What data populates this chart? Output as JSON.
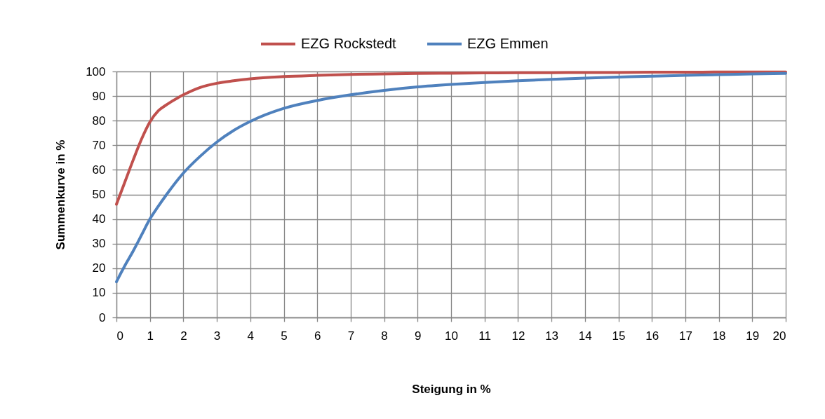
{
  "chart_data": {
    "type": "line",
    "xlabel": "Steigung in %",
    "ylabel": "Summenkurve in %",
    "x": [
      0,
      0.25,
      0.5,
      0.75,
      1,
      1.25,
      1.5,
      2,
      2.5,
      3,
      3.5,
      4,
      5,
      6,
      7,
      8,
      9,
      10,
      11,
      12,
      13,
      14,
      15,
      16,
      17,
      18,
      19,
      20
    ],
    "series": [
      {
        "name": "EZG Rockstedt",
        "color": "#c0504d",
        "values": [
          46,
          55,
          64,
          72.5,
          79.5,
          84,
          86.5,
          90.5,
          93.5,
          95.2,
          96.2,
          97,
          97.9,
          98.4,
          98.8,
          99,
          99.2,
          99.3,
          99.4,
          99.5,
          99.5,
          99.6,
          99.6,
          99.7,
          99.7,
          99.8,
          99.8,
          99.8
        ]
      },
      {
        "name": "EZG Emmen",
        "color": "#4f81bd",
        "values": [
          14.5,
          21,
          27,
          33.5,
          40,
          45.2,
          50,
          58.7,
          65.5,
          71.3,
          76,
          79.7,
          85,
          88.2,
          90.5,
          92.3,
          93.7,
          94.7,
          95.5,
          96.2,
          96.8,
          97.3,
          97.7,
          98.1,
          98.4,
          98.7,
          99,
          99.2
        ]
      }
    ],
    "xlim": [
      0,
      20
    ],
    "xticks": [
      0,
      1,
      2,
      3,
      4,
      5,
      6,
      7,
      8,
      9,
      10,
      11,
      12,
      13,
      14,
      15,
      16,
      17,
      18,
      19,
      20
    ],
    "ylim": [
      0,
      100
    ],
    "yticks": [
      0,
      10,
      20,
      30,
      40,
      50,
      60,
      70,
      80,
      90,
      100
    ],
    "grid": true,
    "legend": "top",
    "line_style": "solid"
  }
}
